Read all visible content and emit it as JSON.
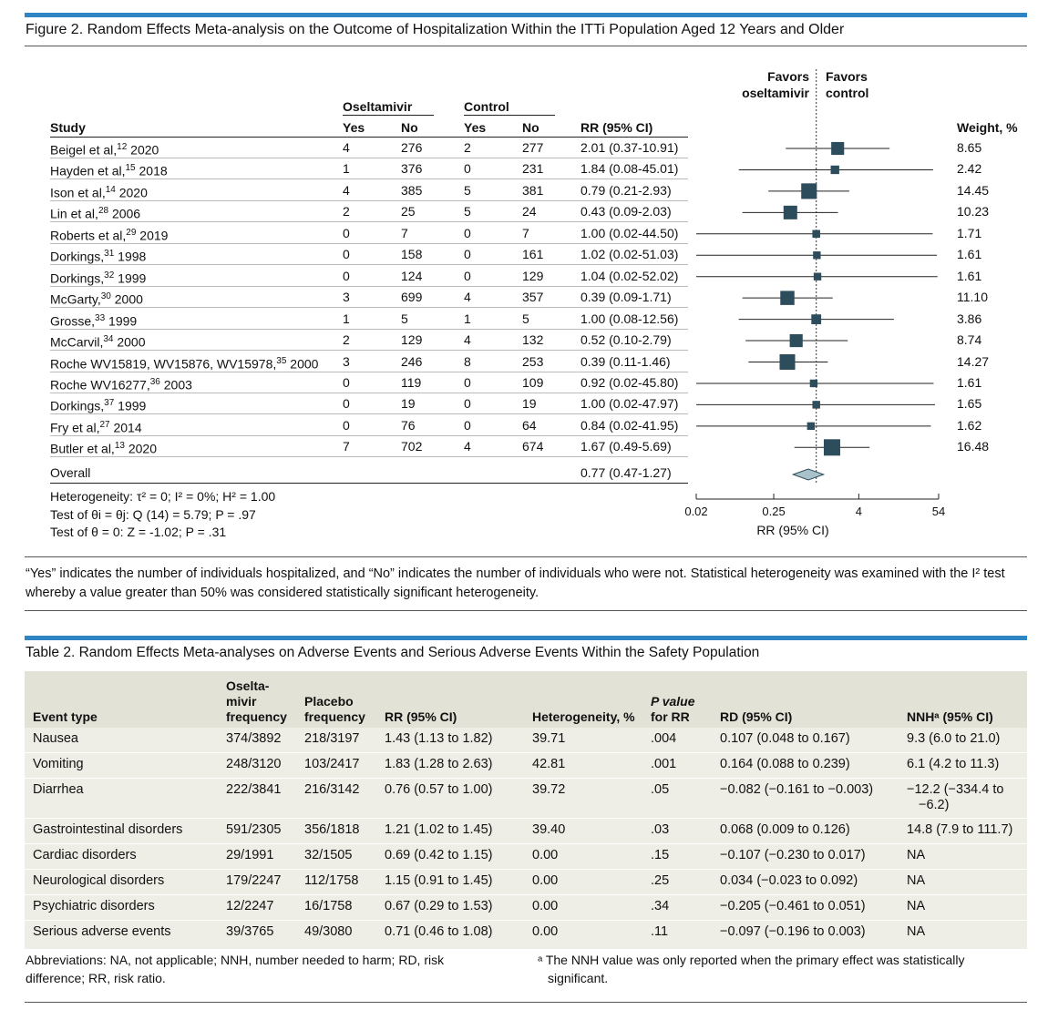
{
  "figure": {
    "title": "Figure 2. Random Effects Meta-analysis on the Outcome of Hospitalization Within the ITTi Population Aged 12 Years and Older",
    "group_oseltamivir": "Oseltamivir",
    "group_control": "Control",
    "col_study": "Study",
    "col_yes1": "Yes",
    "col_no1": "No",
    "col_yes2": "Yes",
    "col_no2": "No",
    "col_rr": "RR (95% CI)",
    "col_weight": "Weight, %",
    "favors_left_1": "Favors",
    "favors_left_2": "oseltamivir",
    "favors_right_1": "Favors",
    "favors_right_2": "control",
    "axis_label": "RR (95% CI)",
    "axis_ticks": [
      "0.02",
      "0.25",
      "4",
      "54"
    ],
    "overall_label": "Overall",
    "overall_rr": "0.77 (0.47-1.27)",
    "het1": "Heterogeneity: τ² = 0; I² = 0%; H² = 1.00",
    "het2": "Test of θi = θj: Q (14) = 5.79; P = .97",
    "het3": "Test of θ = 0: Z = -1.02; P = .31",
    "caption": "“Yes” indicates the number of individuals hospitalized, and “No” indicates the number of individuals who were not. Statistical heterogeneity was examined with the I² test whereby a value greater than 50% was considered statistically significant heterogeneity.",
    "studies": [
      {
        "name": "Beigel et al,",
        "ref": "12",
        "year": " 2020",
        "oy": "4",
        "on": "276",
        "cy": "2",
        "cn": "277",
        "rr": "2.01 (0.37-10.91)",
        "weight": "8.65"
      },
      {
        "name": "Hayden et al,",
        "ref": "15",
        "year": " 2018",
        "oy": "1",
        "on": "376",
        "cy": "0",
        "cn": "231",
        "rr": "1.84 (0.08-45.01)",
        "weight": "2.42"
      },
      {
        "name": "Ison et al,",
        "ref": "14",
        "year": " 2020",
        "oy": "4",
        "on": "385",
        "cy": "5",
        "cn": "381",
        "rr": "0.79 (0.21-2.93)",
        "weight": "14.45"
      },
      {
        "name": "Lin et al,",
        "ref": "28",
        "year": " 2006",
        "oy": "2",
        "on": "25",
        "cy": "5",
        "cn": "24",
        "rr": "0.43 (0.09-2.03)",
        "weight": "10.23"
      },
      {
        "name": "Roberts et al,",
        "ref": "29",
        "year": " 2019",
        "oy": "0",
        "on": "7",
        "cy": "0",
        "cn": "7",
        "rr": "1.00 (0.02-44.50)",
        "weight": "1.71"
      },
      {
        "name": "Dorkings,",
        "ref": "31",
        "year": " 1998",
        "oy": "0",
        "on": "158",
        "cy": "0",
        "cn": "161",
        "rr": "1.02 (0.02-51.03)",
        "weight": "1.61"
      },
      {
        "name": "Dorkings,",
        "ref": "32",
        "year": " 1999",
        "oy": "0",
        "on": "124",
        "cy": "0",
        "cn": "129",
        "rr": "1.04 (0.02-52.02)",
        "weight": "1.61"
      },
      {
        "name": "McGarty,",
        "ref": "30",
        "year": " 2000",
        "oy": "3",
        "on": "699",
        "cy": "4",
        "cn": "357",
        "rr": "0.39 (0.09-1.71)",
        "weight": "11.10"
      },
      {
        "name": "Grosse,",
        "ref": "33",
        "year": " 1999",
        "oy": "1",
        "on": "5",
        "cy": "1",
        "cn": "5",
        "rr": "1.00 (0.08-12.56)",
        "weight": "3.86"
      },
      {
        "name": "McCarvil,",
        "ref": "34",
        "year": " 2000",
        "oy": "2",
        "on": "129",
        "cy": "4",
        "cn": "132",
        "rr": "0.52 (0.10-2.79)",
        "weight": "8.74"
      },
      {
        "name": "Roche WV15819, WV15876, WV15978,",
        "ref": "35",
        "year": " 2000",
        "oy": "3",
        "on": "246",
        "cy": "8",
        "cn": "253",
        "rr": "0.39 (0.11-1.46)",
        "weight": "14.27"
      },
      {
        "name": "Roche WV16277,",
        "ref": "36",
        "year": " 2003",
        "oy": "0",
        "on": "119",
        "cy": "0",
        "cn": "109",
        "rr": "0.92 (0.02-45.80)",
        "weight": "1.61"
      },
      {
        "name": "Dorkings,",
        "ref": "37",
        "year": " 1999",
        "oy": "0",
        "on": "19",
        "cy": "0",
        "cn": "19",
        "rr": "1.00 (0.02-47.97)",
        "weight": "1.65"
      },
      {
        "name": "Fry et al,",
        "ref": "27",
        "year": " 2014",
        "oy": "0",
        "on": "76",
        "cy": "0",
        "cn": "64",
        "rr": "0.84 (0.02-41.95)",
        "weight": "1.62"
      },
      {
        "name": "Butler et al,",
        "ref": "13",
        "year": " 2020",
        "oy": "7",
        "on": "702",
        "cy": "4",
        "cn": "674",
        "rr": "1.67 (0.49-5.69)",
        "weight": "16.48"
      }
    ]
  },
  "chart_data": {
    "type": "forest",
    "scale": "log",
    "xlim": [
      0.02,
      54
    ],
    "xticks": [
      0.02,
      0.25,
      4,
      54
    ],
    "reference_line": 1,
    "points": [
      {
        "rr": 2.01,
        "lo": 0.37,
        "hi": 10.91,
        "weight": 8.65
      },
      {
        "rr": 1.84,
        "lo": 0.08,
        "hi": 45.01,
        "weight": 2.42
      },
      {
        "rr": 0.79,
        "lo": 0.21,
        "hi": 2.93,
        "weight": 14.45
      },
      {
        "rr": 0.43,
        "lo": 0.09,
        "hi": 2.03,
        "weight": 10.23
      },
      {
        "rr": 1.0,
        "lo": 0.02,
        "hi": 44.5,
        "weight": 1.71
      },
      {
        "rr": 1.02,
        "lo": 0.02,
        "hi": 51.03,
        "weight": 1.61
      },
      {
        "rr": 1.04,
        "lo": 0.02,
        "hi": 52.02,
        "weight": 1.61
      },
      {
        "rr": 0.39,
        "lo": 0.09,
        "hi": 1.71,
        "weight": 11.1
      },
      {
        "rr": 1.0,
        "lo": 0.08,
        "hi": 12.56,
        "weight": 3.86
      },
      {
        "rr": 0.52,
        "lo": 0.1,
        "hi": 2.79,
        "weight": 8.74
      },
      {
        "rr": 0.39,
        "lo": 0.11,
        "hi": 1.46,
        "weight": 14.27
      },
      {
        "rr": 0.92,
        "lo": 0.02,
        "hi": 45.8,
        "weight": 1.61
      },
      {
        "rr": 1.0,
        "lo": 0.02,
        "hi": 47.97,
        "weight": 1.65
      },
      {
        "rr": 0.84,
        "lo": 0.02,
        "hi": 41.95,
        "weight": 1.62
      },
      {
        "rr": 1.67,
        "lo": 0.49,
        "hi": 5.69,
        "weight": 16.48
      }
    ],
    "overall": {
      "rr": 0.77,
      "lo": 0.47,
      "hi": 1.27
    },
    "colors": {
      "marker": "#2e4d5c",
      "diamond": "#a9c1c9"
    }
  },
  "table": {
    "title": "Table 2. Random Effects Meta-analyses on Adverse Events and Serious Adverse Events Within the Safety Population",
    "headers": {
      "event": "Event type",
      "osel_1": "Oselta-",
      "osel_2": "mivir",
      "osel_3": "frequency",
      "plac_1": "Placebo",
      "plac_2": "frequency",
      "rr": "RR (95% CI)",
      "het": "Heterogeneity, %",
      "p_1": "P value",
      "p_2": "for RR",
      "rd": "RD (95% CI)",
      "nnh": "NNHᵃ (95% CI)"
    },
    "rows": [
      {
        "event": "Nausea",
        "osel": "374/3892",
        "plac": "218/3197",
        "rr": "1.43 (1.13 to 1.82)",
        "het": "39.71",
        "p": ".004",
        "rd": "0.107 (0.048 to 0.167)",
        "nnh": "9.3 (6.0 to 21.0)",
        "nnh2": ""
      },
      {
        "event": "Vomiting",
        "osel": "248/3120",
        "plac": "103/2417",
        "rr": "1.83 (1.28 to 2.63)",
        "het": "42.81",
        "p": ".001",
        "rd": "0.164 (0.088 to 0.239)",
        "nnh": "6.1 (4.2 to 11.3)",
        "nnh2": ""
      },
      {
        "event": "Diarrhea",
        "osel": "222/3841",
        "plac": "216/3142",
        "rr": "0.76 (0.57 to 1.00)",
        "het": "39.72",
        "p": ".05",
        "rd": "−0.082 (−0.161 to −0.003)",
        "nnh": "−12.2 (−334.4 to",
        "nnh2": "−6.2)"
      },
      {
        "event": "Gastrointestinal disorders",
        "osel": "591/2305",
        "plac": "356/1818",
        "rr": "1.21 (1.02 to 1.45)",
        "het": "39.40",
        "p": ".03",
        "rd": "0.068 (0.009 to 0.126)",
        "nnh": "14.8 (7.9 to 111.7)",
        "nnh2": ""
      },
      {
        "event": "Cardiac disorders",
        "osel": "29/1991",
        "plac": "32/1505",
        "rr": "0.69 (0.42 to 1.15)",
        "het": "0.00",
        "p": ".15",
        "rd": "−0.107 (−0.230 to 0.017)",
        "nnh": "NA",
        "nnh2": ""
      },
      {
        "event": "Neurological disorders",
        "osel": "179/2247",
        "plac": "112/1758",
        "rr": "1.15 (0.91 to 1.45)",
        "het": "0.00",
        "p": ".25",
        "rd": "0.034 (−0.023 to 0.092)",
        "nnh": "NA",
        "nnh2": ""
      },
      {
        "event": "Psychiatric disorders",
        "osel": "12/2247",
        "plac": "16/1758",
        "rr": "0.67 (0.29 to 1.53)",
        "het": "0.00",
        "p": ".34",
        "rd": "−0.205 (−0.461 to 0.051)",
        "nnh": "NA",
        "nnh2": ""
      },
      {
        "event": "Serious adverse events",
        "osel": "39/3765",
        "plac": "49/3080",
        "rr": "0.71 (0.46 to 1.08)",
        "het": "0.00",
        "p": ".11",
        "rd": "−0.097 (−0.196 to 0.003)",
        "nnh": "NA",
        "nnh2": ""
      }
    ],
    "footnote_abbrev": "Abbreviations: NA, not applicable; NNH, number needed to harm; RD, risk difference; RR, risk ratio.",
    "footnote_a": "ᵃ The NNH value was only reported when the primary effect was statistically significant."
  }
}
